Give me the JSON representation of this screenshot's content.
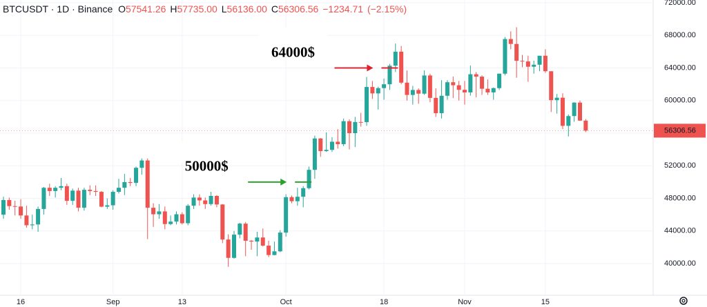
{
  "header": {
    "title": "BTCUSDT · 1D · Binance",
    "ohlc": [
      {
        "label": "O",
        "value": "57541.26"
      },
      {
        "label": "H",
        "value": "57735.00"
      },
      {
        "label": "L",
        "value": "56136.00"
      },
      {
        "label": "C",
        "value": "56306.56"
      }
    ],
    "change": "−1234.71",
    "change_pct": "(−2.15%)"
  },
  "chart_data": {
    "type": "candlestick",
    "up_color": "#26a69a",
    "down_color": "#ef5350",
    "ylim": [
      35940,
      72340
    ],
    "yticks": [
      {
        "value": 40000,
        "label": "40000.00"
      },
      {
        "value": 44000,
        "label": "44000.00"
      },
      {
        "value": 48000,
        "label": "48000.00"
      },
      {
        "value": 52000,
        "label": "52000.00"
      },
      {
        "value": 56000,
        "label": "56000.00"
      },
      {
        "value": 60000,
        "label": "60000.00"
      },
      {
        "value": 64000,
        "label": "64000.00"
      },
      {
        "value": 68000,
        "label": "68000.00"
      },
      {
        "value": 72000,
        "label": "72000.00"
      }
    ],
    "last_price": {
      "value": 56306.56,
      "label": "56306.56"
    },
    "categories": [
      null,
      null,
      null,
      "16",
      null,
      null,
      null,
      null,
      null,
      null,
      null,
      null,
      null,
      null,
      null,
      null,
      null,
      null,
      null,
      "Sep",
      null,
      null,
      null,
      null,
      null,
      null,
      null,
      null,
      null,
      null,
      null,
      "13",
      null,
      null,
      null,
      null,
      null,
      null,
      null,
      null,
      null,
      null,
      null,
      null,
      null,
      null,
      null,
      null,
      null,
      "Oct",
      null,
      null,
      null,
      null,
      null,
      null,
      null,
      null,
      null,
      null,
      null,
      null,
      null,
      null,
      null,
      null,
      "18",
      null,
      null,
      null,
      null,
      null,
      null,
      null,
      null,
      null,
      null,
      null,
      null,
      null,
      "Nov",
      null,
      null,
      null,
      null,
      null,
      null,
      null,
      null,
      null,
      null,
      null,
      null,
      null,
      "15",
      null,
      null,
      null,
      null,
      null,
      null,
      null
    ],
    "candles": [
      [
        46000,
        48200,
        45500,
        47800
      ],
      [
        47800,
        48100,
        46600,
        47050
      ],
      [
        47050,
        47700,
        45900,
        47000
      ],
      [
        47000,
        47900,
        45500,
        45900
      ],
      [
        45900,
        47100,
        44400,
        44700
      ],
      [
        44700,
        46000,
        44200,
        44800
      ],
      [
        44800,
        47000,
        43900,
        46700
      ],
      [
        46700,
        49400,
        46000,
        49300
      ],
      [
        49300,
        49800,
        48300,
        48900
      ],
      [
        48900,
        49500,
        48100,
        49300
      ],
      [
        49300,
        50500,
        49000,
        49500
      ],
      [
        49500,
        49800,
        47200,
        47700
      ],
      [
        47700,
        49200,
        47200,
        48950
      ],
      [
        48950,
        49300,
        46400,
        46850
      ],
      [
        46850,
        49300,
        46500,
        49050
      ],
      [
        49050,
        49600,
        48400,
        48900
      ],
      [
        48900,
        49600,
        48300,
        48800
      ],
      [
        48800,
        48900,
        46900,
        46980
      ],
      [
        46980,
        48000,
        46700,
        47150
      ],
      [
        47150,
        49000,
        46600,
        48800
      ],
      [
        48800,
        50400,
        48600,
        49300
      ],
      [
        49300,
        51000,
        48400,
        50000
      ],
      [
        50000,
        50500,
        49500,
        49900
      ],
      [
        49900,
        51900,
        49500,
        51750
      ],
      [
        51750,
        52900,
        50900,
        52650
      ],
      [
        52650,
        52900,
        43000,
        46850
      ],
      [
        46850,
        47400,
        44500,
        46050
      ],
      [
        46050,
        47300,
        45500,
        46400
      ],
      [
        46400,
        47000,
        44200,
        44850
      ],
      [
        44850,
        45900,
        44700,
        45150
      ],
      [
        45150,
        46400,
        44800,
        46050
      ],
      [
        46050,
        46300,
        44800,
        44950
      ],
      [
        44950,
        47300,
        44700,
        47100
      ],
      [
        47100,
        48500,
        46700,
        48100
      ],
      [
        48100,
        48500,
        47100,
        47750
      ],
      [
        47750,
        48100,
        46700,
        47300
      ],
      [
        47300,
        48800,
        47100,
        48300
      ],
      [
        48300,
        48400,
        46900,
        47250
      ],
      [
        47250,
        47300,
        42500,
        42950
      ],
      [
        42950,
        43600,
        39600,
        40700
      ],
      [
        40700,
        44000,
        40600,
        43550
      ],
      [
        43550,
        45000,
        43100,
        44900
      ],
      [
        44900,
        45100,
        40900,
        42800
      ],
      [
        42800,
        42900,
        41700,
        42700
      ],
      [
        42700,
        43900,
        40900,
        43200
      ],
      [
        43200,
        44300,
        42100,
        42200
      ],
      [
        42200,
        42800,
        40800,
        41050
      ],
      [
        41050,
        42700,
        41000,
        41500
      ],
      [
        41500,
        44100,
        41400,
        43800
      ],
      [
        43800,
        48500,
        43300,
        48150
      ],
      [
        48150,
        48350,
        47400,
        47650
      ],
      [
        47650,
        49300,
        47100,
        48200
      ],
      [
        48200,
        49500,
        46900,
        49250
      ],
      [
        49250,
        51900,
        49100,
        51500
      ],
      [
        51500,
        55700,
        50400,
        55350
      ],
      [
        55350,
        55400,
        53100,
        53800
      ],
      [
        53800,
        56100,
        53700,
        53950
      ],
      [
        53950,
        55500,
        53700,
        54950
      ],
      [
        54950,
        56500,
        54100,
        54650
      ],
      [
        54650,
        57800,
        54400,
        57470
      ],
      [
        57470,
        57700,
        54000,
        56000
      ],
      [
        56000,
        58000,
        54300,
        57370
      ],
      [
        57370,
        58500,
        56800,
        57350
      ],
      [
        57350,
        62900,
        56900,
        61670
      ],
      [
        61670,
        62400,
        60200,
        60880
      ],
      [
        60880,
        61700,
        58900,
        61530
      ],
      [
        61530,
        62700,
        60100,
        62000
      ],
      [
        62000,
        64500,
        61300,
        64280
      ],
      [
        64280,
        67000,
        63500,
        66000
      ],
      [
        66000,
        66700,
        62000,
        62200
      ],
      [
        62200,
        63700,
        60000,
        60690
      ],
      [
        60690,
        61800,
        59500,
        61300
      ],
      [
        61300,
        61500,
        59600,
        60850
      ],
      [
        60850,
        63700,
        60700,
        63080
      ],
      [
        63080,
        63300,
        59800,
        60330
      ],
      [
        60330,
        61500,
        58000,
        58450
      ],
      [
        58450,
        62500,
        57800,
        60590
      ],
      [
        60590,
        62500,
        60100,
        62250
      ],
      [
        62250,
        62950,
        60300,
        61880
      ],
      [
        61880,
        62400,
        60000,
        61320
      ],
      [
        61320,
        62400,
        59500,
        61000
      ],
      [
        61000,
        64300,
        60600,
        63230
      ],
      [
        63230,
        63500,
        60400,
        62940
      ],
      [
        62940,
        63100,
        60700,
        61450
      ],
      [
        61450,
        62600,
        60700,
        61000
      ],
      [
        61000,
        61600,
        60100,
        61530
      ],
      [
        61530,
        63300,
        61300,
        63300
      ],
      [
        63300,
        67800,
        63100,
        67550
      ],
      [
        67550,
        68500,
        66300,
        66950
      ],
      [
        66950,
        69000,
        62800,
        64880
      ],
      [
        64880,
        65600,
        64100,
        64800
      ],
      [
        64800,
        65500,
        62300,
        64150
      ],
      [
        64150,
        64900,
        63300,
        64400
      ],
      [
        64400,
        65500,
        63600,
        65500
      ],
      [
        65500,
        66300,
        63400,
        63600
      ],
      [
        63600,
        63600,
        58600,
        60050
      ],
      [
        60050,
        60800,
        58400,
        60350
      ],
      [
        60350,
        60900,
        56500,
        56900
      ],
      [
        56900,
        58300,
        55600,
        58100
      ],
      [
        58100,
        59800,
        57400,
        59750
      ],
      [
        59750,
        60000,
        57500,
        57541.26
      ],
      [
        57541.26,
        57735,
        56136,
        56306.56
      ]
    ],
    "annotations": [
      {
        "text": "64000$",
        "value": 64000,
        "color": "#e0222e",
        "index": 67
      },
      {
        "text": "50000$",
        "value": 50000,
        "color": "#2ca02c",
        "index": 52
      }
    ]
  }
}
